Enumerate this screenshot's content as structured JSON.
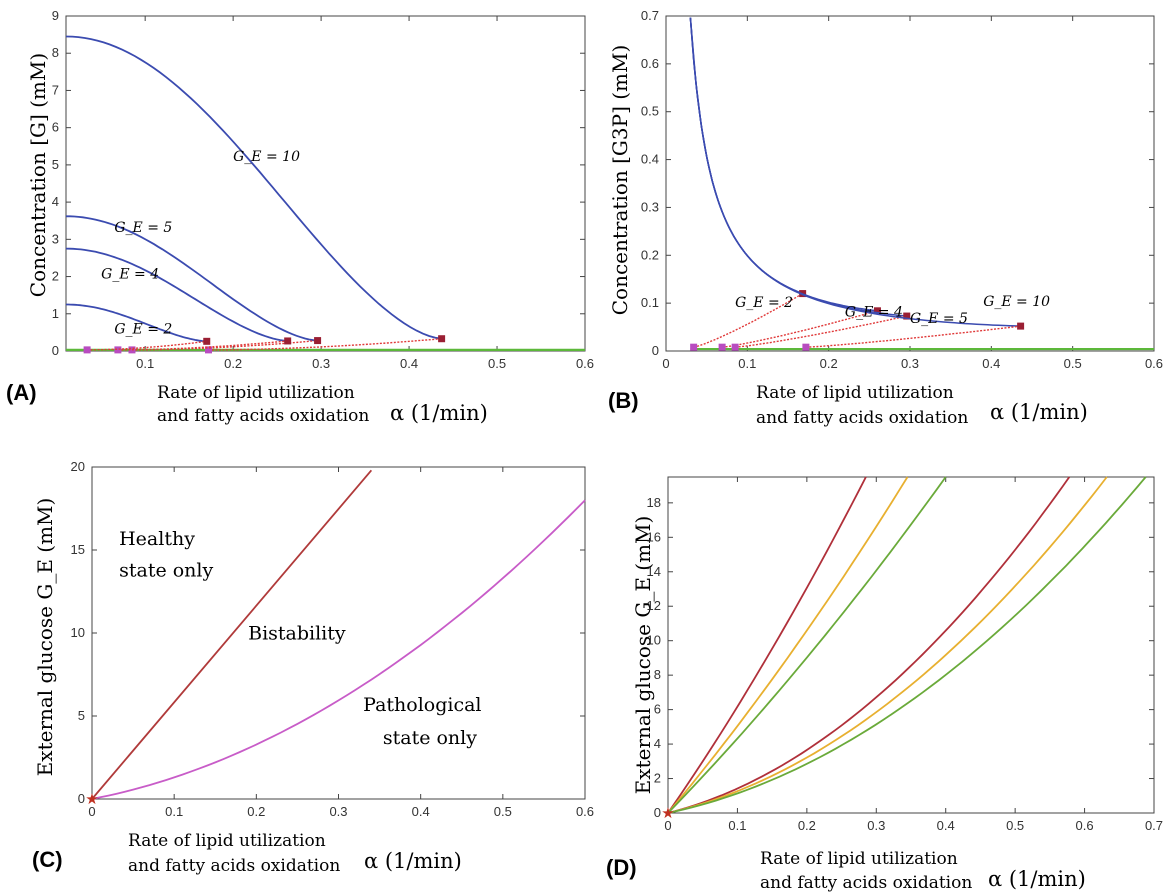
{
  "colors": {
    "stable_high": "#3b4bb0",
    "unstable": "#e03a3a",
    "stable_low": "#5cb83a",
    "saddle_marker": "#9a1f33",
    "low_marker": "#b84cc0",
    "boundary_left": "#b03a3a",
    "boundary_right": "#c85cc8",
    "curve_red": "#b0303a",
    "curve_yellow": "#e8b030",
    "curve_green": "#6aaa3a",
    "origin_star": "#c03020"
  },
  "common": {
    "xlabel_line1": "Rate of lipid utilization",
    "xlabel_line2": "and fatty acids oxidation",
    "xlabel_symbol": "α (1/min)"
  },
  "chart_data": [
    {
      "panel": "(A)",
      "type": "line",
      "ylabel": "Concentration [G] (mM)",
      "xlim": [
        0.01,
        0.6
      ],
      "ylim": [
        0,
        9
      ],
      "xticks": [
        "0.1",
        "0.2",
        "0.3",
        "0.4",
        "0.5",
        "0.6"
      ],
      "yticks": [
        "0",
        "1",
        "2",
        "3",
        "4",
        "5",
        "6",
        "7",
        "8",
        "9"
      ],
      "annotations": [
        "G_E = 10",
        "G_E = 5",
        "G_E = 4",
        "G_E = 2"
      ],
      "series": [
        {
          "G_E": 10,
          "high_start": 8.45,
          "bif_alpha": 0.437,
          "bif_value": 0.33,
          "low_alpha": 0.172
        },
        {
          "G_E": 5,
          "high_start": 3.62,
          "bif_alpha": 0.296,
          "bif_value": 0.28,
          "low_alpha": 0.085
        },
        {
          "G_E": 4,
          "high_start": 2.75,
          "bif_alpha": 0.262,
          "bif_value": 0.27,
          "low_alpha": 0.069
        },
        {
          "G_E": 2,
          "high_start": 1.25,
          "bif_alpha": 0.17,
          "bif_value": 0.26,
          "low_alpha": 0.034
        }
      ],
      "low_branch_value": 0.03
    },
    {
      "panel": "(B)",
      "type": "line",
      "ylabel": "Concentration [G3P] (mM)",
      "xlim": [
        0,
        0.6
      ],
      "ylim": [
        0,
        0.7
      ],
      "xticks": [
        "0",
        "0.1",
        "0.2",
        "0.3",
        "0.4",
        "0.5",
        "0.6"
      ],
      "yticks": [
        "0",
        "0.1",
        "0.2",
        "0.3",
        "0.4",
        "0.5",
        "0.6",
        "0.7"
      ],
      "annotations": [
        "G_E = 2",
        "G_E = 4",
        "G_E = 5",
        "G_E = 10"
      ],
      "series": [
        {
          "G_E": 2,
          "bif_alpha": 0.168,
          "bif_value": 0.12,
          "low_alpha": 0.034
        },
        {
          "G_E": 4,
          "bif_alpha": 0.26,
          "bif_value": 0.084,
          "low_alpha": 0.069
        },
        {
          "G_E": 5,
          "bif_alpha": 0.296,
          "bif_value": 0.073,
          "low_alpha": 0.085
        },
        {
          "G_E": 10,
          "bif_alpha": 0.436,
          "bif_value": 0.052,
          "low_alpha": 0.172
        }
      ],
      "low_branch_value": 0.008
    },
    {
      "panel": "(C)",
      "type": "line",
      "ylabel": "External glucose G_E (mM)",
      "xlim": [
        0,
        0.6
      ],
      "ylim": [
        0,
        20
      ],
      "xticks": [
        "0",
        "0.1",
        "0.2",
        "0.3",
        "0.4",
        "0.5",
        "0.6"
      ],
      "yticks": [
        "0",
        "5",
        "10",
        "15",
        "20"
      ],
      "regions": [
        "Healthy",
        "state only",
        "Bistability",
        "Pathological",
        "state only"
      ],
      "left_boundary_end": [
        0.34,
        19.8
      ],
      "right_boundary_end": [
        0.6,
        18
      ]
    },
    {
      "panel": "(D)",
      "type": "line",
      "ylabel": "External glucose G_E (mM)",
      "xlim": [
        0,
        0.7
      ],
      "ylim": [
        0,
        19.5
      ],
      "xticks": [
        "0",
        "0.1",
        "0.2",
        "0.3",
        "0.4",
        "0.5",
        "0.6",
        "0.7"
      ],
      "yticks": [
        "0",
        "2",
        "4",
        "6",
        "8",
        "10",
        "12",
        "14",
        "16",
        "18"
      ],
      "left_ends": [
        0.285,
        0.345,
        0.4
      ],
      "right_ends": [
        0.578,
        0.632,
        0.688
      ]
    }
  ]
}
